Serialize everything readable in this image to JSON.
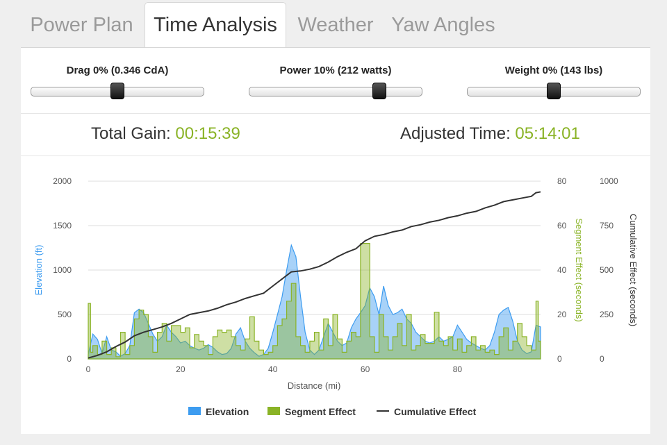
{
  "tabs": [
    {
      "label": "Power Plan",
      "active": false
    },
    {
      "label": "Time Analysis",
      "active": true
    },
    {
      "label": "Weather",
      "active": false
    },
    {
      "label": "Yaw Angles",
      "active": false
    }
  ],
  "sliders": [
    {
      "label": "Drag 0% (0.346 CdA)",
      "value": 0.5
    },
    {
      "label": "Power 10% (212 watts)",
      "value": 0.75
    },
    {
      "label": "Weight 0% (143 lbs)",
      "value": 0.5
    }
  ],
  "summary": {
    "total_gain_label": "Total Gain:",
    "total_gain_value": "00:15:39",
    "adjusted_time_label": "Adjusted Time:",
    "adjusted_time_value": "05:14:01"
  },
  "colors": {
    "elevation": "#3d9cf0",
    "segment": "#8ab326",
    "cumulative": "#333333",
    "grid": "#dddddd"
  },
  "chart_data": {
    "type": "area",
    "title": "",
    "xlabel": "Distance (mi)",
    "xlim": [
      0,
      98
    ],
    "x_ticks": [
      "0",
      "20",
      "40",
      "60",
      "80"
    ],
    "legend_position": "bottom",
    "grid": true,
    "axes": {
      "elevation": {
        "label": "Elevation (ft)",
        "range": [
          0,
          2000
        ],
        "ticks": [
          "0",
          "500",
          "1000",
          "1500",
          "2000"
        ],
        "side": "left"
      },
      "segment": {
        "label": "Segment Effect (seconds)",
        "range": [
          0,
          80
        ],
        "ticks": [
          "0",
          "20",
          "40",
          "60",
          "80"
        ],
        "side": "right"
      },
      "cumulative": {
        "label": "Cumulative Effect (seconds)",
        "range": [
          0,
          1000
        ],
        "ticks": [
          "0",
          "250",
          "500",
          "750",
          "1000"
        ],
        "side": "right"
      }
    },
    "series": [
      {
        "name": "Elevation",
        "kind": "area",
        "axis": "elevation",
        "x": [
          0,
          1,
          2,
          3,
          4,
          5,
          6,
          7,
          8,
          9,
          10,
          11,
          12,
          13,
          14,
          15,
          16,
          17,
          18,
          19,
          20,
          21,
          22,
          23,
          24,
          25,
          26,
          27,
          28,
          29,
          30,
          31,
          32,
          33,
          34,
          35,
          36,
          37,
          38,
          39,
          40,
          41,
          42,
          43,
          44,
          45,
          46,
          47,
          48,
          49,
          50,
          51,
          52,
          53,
          54,
          55,
          56,
          57,
          58,
          59,
          60,
          61,
          62,
          63,
          64,
          65,
          66,
          67,
          68,
          69,
          70,
          71,
          72,
          73,
          74,
          75,
          76,
          77,
          78,
          79,
          80,
          81,
          82,
          83,
          84,
          85,
          86,
          87,
          88,
          89,
          90,
          91,
          92,
          93,
          94,
          95,
          96,
          97,
          98
        ],
        "values": [
          50,
          280,
          220,
          60,
          250,
          100,
          80,
          30,
          60,
          150,
          520,
          560,
          520,
          400,
          280,
          200,
          250,
          380,
          300,
          250,
          180,
          200,
          150,
          120,
          100,
          120,
          160,
          130,
          80,
          50,
          60,
          120,
          280,
          350,
          200,
          120,
          70,
          30,
          50,
          120,
          300,
          500,
          700,
          1000,
          1280,
          1150,
          700,
          300,
          100,
          50,
          100,
          250,
          400,
          300,
          200,
          150,
          180,
          350,
          450,
          520,
          600,
          800,
          700,
          500,
          820,
          600,
          500,
          520,
          560,
          450,
          400,
          300,
          250,
          200,
          180,
          200,
          250,
          200,
          220,
          250,
          380,
          300,
          220,
          180,
          150,
          120,
          100,
          150,
          300,
          500,
          550,
          580,
          420,
          200,
          100,
          60,
          80,
          380,
          360
        ]
      },
      {
        "name": "Segment Effect",
        "kind": "step-area",
        "axis": "segment",
        "x": [
          0,
          0.5,
          1,
          2,
          3,
          4,
          5,
          6,
          7,
          8,
          9,
          10,
          11,
          12,
          13,
          14,
          15,
          16,
          17,
          18,
          20,
          21,
          22,
          23,
          24,
          25,
          26,
          27,
          28,
          29,
          30,
          31,
          32,
          33,
          34,
          35,
          36,
          37,
          38,
          39,
          40,
          41,
          42,
          43,
          44,
          45,
          46,
          47,
          48,
          49,
          50,
          51,
          52,
          53,
          54,
          55,
          56,
          57,
          58,
          59,
          61,
          62,
          63,
          64,
          65,
          66,
          67,
          68,
          69,
          70,
          71,
          72,
          73,
          75,
          76,
          77,
          78,
          79,
          80,
          81,
          82,
          83,
          84,
          85,
          86,
          87,
          88,
          89,
          90,
          91,
          92,
          93,
          94,
          95,
          96,
          97,
          97.5,
          98
        ],
        "values": [
          25,
          3,
          6,
          2,
          8,
          2,
          5,
          1,
          12,
          2,
          6,
          18,
          22,
          20,
          10,
          3,
          12,
          16,
          8,
          15,
          12,
          14,
          5,
          11,
          8,
          6,
          2,
          10,
          13,
          12,
          13,
          10,
          6,
          4,
          9,
          19,
          8,
          4,
          2,
          3,
          6,
          15,
          18,
          26,
          34,
          10,
          6,
          3,
          8,
          12,
          4,
          18,
          6,
          20,
          9,
          3,
          8,
          12,
          10,
          52,
          10,
          3,
          20,
          10,
          4,
          10,
          16,
          6,
          20,
          4,
          6,
          11,
          7,
          21,
          8,
          6,
          10,
          4,
          9,
          3,
          6,
          10,
          4,
          6,
          3,
          4,
          2,
          10,
          14,
          4,
          8,
          16,
          10,
          6,
          4,
          26,
          8,
          5
        ]
      },
      {
        "name": "Cumulative Effect",
        "kind": "line",
        "axis": "cumulative",
        "x": [
          0,
          2,
          4,
          6,
          8,
          10,
          12,
          14,
          16,
          18,
          20,
          22,
          24,
          26,
          28,
          30,
          32,
          34,
          36,
          38,
          40,
          42,
          44,
          46,
          48,
          50,
          52,
          54,
          56,
          58,
          60,
          62,
          64,
          66,
          68,
          70,
          72,
          74,
          76,
          78,
          80,
          82,
          84,
          86,
          88,
          90,
          92,
          94,
          96,
          97,
          98
        ],
        "values": [
          5,
          20,
          40,
          70,
          95,
          130,
          150,
          165,
          180,
          200,
          225,
          250,
          260,
          270,
          285,
          305,
          320,
          340,
          355,
          370,
          410,
          450,
          490,
          495,
          505,
          520,
          545,
          575,
          600,
          620,
          665,
          690,
          700,
          715,
          725,
          745,
          755,
          770,
          780,
          795,
          805,
          820,
          830,
          850,
          865,
          885,
          895,
          905,
          915,
          935,
          940
        ]
      }
    ]
  }
}
